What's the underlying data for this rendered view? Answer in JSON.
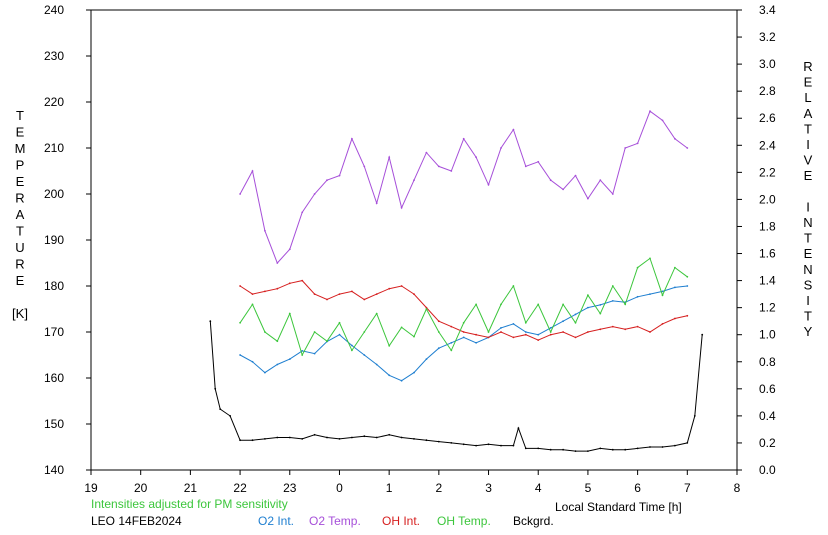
{
  "chart_data": {
    "type": "line",
    "xlabel": "Local Standard Time [h]",
    "ylabel_left": [
      "T",
      "E",
      "M",
      "P",
      "E",
      "R",
      "A",
      "T",
      "U",
      "R",
      "E",
      "",
      "[K]"
    ],
    "ylabel_right": [
      "R",
      "E",
      "L",
      "A",
      "T",
      "I",
      "V",
      "E",
      "",
      "I",
      "N",
      "T",
      "E",
      "N",
      "S",
      "I",
      "T",
      "Y"
    ],
    "note": "Intensities adjusted for PM sensitivity",
    "station": "LEO 14FEB2024",
    "x_ticks": [
      "19",
      "20",
      "21",
      "22",
      "23",
      "0",
      "1",
      "2",
      "3",
      "4",
      "5",
      "6",
      "7",
      "8"
    ],
    "x_range": [
      19,
      32
    ],
    "y_left_ticks": [
      "140",
      "150",
      "160",
      "170",
      "180",
      "190",
      "200",
      "210",
      "220",
      "230",
      "240"
    ],
    "y_left_range": [
      140,
      240
    ],
    "y_right_ticks": [
      "0.0",
      "0.2",
      "0.4",
      "0.6",
      "0.8",
      "1.0",
      "1.2",
      "1.4",
      "1.6",
      "1.8",
      "2.0",
      "2.2",
      "2.4",
      "2.6",
      "2.8",
      "3.0",
      "3.2",
      "3.4"
    ],
    "y_right_range": [
      0,
      3.4
    ],
    "legend": [
      {
        "label": "O2 Int.",
        "color": "#1f7fd0"
      },
      {
        "label": "O2 Temp.",
        "color": "#a64fd9"
      },
      {
        "label": "OH Int.",
        "color": "#d61f1f"
      },
      {
        "label": "OH Temp.",
        "color": "#3cc63c"
      },
      {
        "label": "Bckgrd.",
        "color": "#000000"
      }
    ],
    "note_color": "#3cc63c",
    "series": [
      {
        "name": "O2 Temp.",
        "axis": "left",
        "color": "#a64fd9",
        "x": [
          22.0,
          22.25,
          22.5,
          22.75,
          23.0,
          23.25,
          23.5,
          23.75,
          24.0,
          24.25,
          24.5,
          24.75,
          25.0,
          25.25,
          25.5,
          25.75,
          26.0,
          26.25,
          26.5,
          26.75,
          27.0,
          27.25,
          27.5,
          27.75,
          28.0,
          28.25,
          28.5,
          28.75,
          29.0,
          29.25,
          29.5,
          29.75,
          30.0,
          30.25,
          30.5,
          30.75,
          31.0
        ],
        "y": [
          200,
          205,
          192,
          185,
          188,
          196,
          200,
          203,
          204,
          212,
          206,
          198,
          208,
          197,
          203,
          209,
          206,
          205,
          212,
          208,
          202,
          210,
          214,
          206,
          207,
          203,
          201,
          204,
          199,
          203,
          200,
          210,
          211,
          218,
          216,
          212,
          210
        ]
      },
      {
        "name": "O2 Int.",
        "axis": "right",
        "color": "#1f7fd0",
        "x": [
          22.0,
          22.25,
          22.5,
          22.75,
          23.0,
          23.25,
          23.5,
          23.75,
          24.0,
          24.25,
          24.5,
          24.75,
          25.0,
          25.25,
          25.5,
          25.75,
          26.0,
          26.25,
          26.5,
          26.75,
          27.0,
          27.25,
          27.5,
          27.75,
          28.0,
          28.25,
          28.5,
          28.75,
          29.0,
          29.25,
          29.5,
          29.75,
          30.0,
          30.25,
          30.5,
          30.75,
          31.0
        ],
        "y": [
          0.85,
          0.8,
          0.72,
          0.78,
          0.82,
          0.88,
          0.86,
          0.95,
          1.0,
          0.92,
          0.85,
          0.78,
          0.7,
          0.66,
          0.72,
          0.82,
          0.9,
          0.94,
          0.98,
          0.94,
          0.98,
          1.05,
          1.08,
          1.02,
          1.0,
          1.05,
          1.1,
          1.15,
          1.2,
          1.22,
          1.25,
          1.24,
          1.28,
          1.3,
          1.32,
          1.35,
          1.36
        ]
      },
      {
        "name": "OH Int.",
        "axis": "right",
        "color": "#d61f1f",
        "x": [
          22.0,
          22.25,
          22.5,
          22.75,
          23.0,
          23.25,
          23.5,
          23.75,
          24.0,
          24.25,
          24.5,
          24.75,
          25.0,
          25.25,
          25.5,
          25.75,
          26.0,
          26.25,
          26.5,
          26.75,
          27.0,
          27.25,
          27.5,
          27.75,
          28.0,
          28.25,
          28.5,
          28.75,
          29.0,
          29.25,
          29.5,
          29.75,
          30.0,
          30.25,
          30.5,
          30.75,
          31.0
        ],
        "y": [
          1.36,
          1.3,
          1.32,
          1.34,
          1.38,
          1.4,
          1.3,
          1.26,
          1.3,
          1.32,
          1.26,
          1.3,
          1.34,
          1.36,
          1.3,
          1.2,
          1.1,
          1.06,
          1.02,
          1.0,
          0.98,
          1.02,
          0.98,
          1.0,
          0.96,
          1.0,
          1.02,
          0.98,
          1.02,
          1.04,
          1.06,
          1.04,
          1.06,
          1.02,
          1.08,
          1.12,
          1.14
        ]
      },
      {
        "name": "OH Temp.",
        "axis": "left",
        "color": "#3cc63c",
        "x": [
          22.0,
          22.25,
          22.5,
          22.75,
          23.0,
          23.25,
          23.5,
          23.75,
          24.0,
          24.25,
          24.5,
          24.75,
          25.0,
          25.25,
          25.5,
          25.75,
          26.0,
          26.25,
          26.5,
          26.75,
          27.0,
          27.25,
          27.5,
          27.75,
          28.0,
          28.25,
          28.5,
          28.75,
          29.0,
          29.25,
          29.5,
          29.75,
          30.0,
          30.25,
          30.5,
          30.75,
          31.0
        ],
        "y": [
          172,
          176,
          170,
          168,
          174,
          165,
          170,
          168,
          172,
          166,
          170,
          174,
          167,
          171,
          169,
          175,
          170,
          166,
          172,
          176,
          170,
          176,
          180,
          172,
          176,
          170,
          176,
          172,
          178,
          174,
          180,
          176,
          184,
          186,
          178,
          184,
          182
        ]
      },
      {
        "name": "Bckgrd.",
        "axis": "right",
        "color": "#000000",
        "x": [
          21.4,
          21.5,
          21.6,
          21.8,
          22.0,
          22.25,
          22.5,
          22.75,
          23.0,
          23.25,
          23.5,
          23.75,
          24.0,
          24.25,
          24.5,
          24.75,
          25.0,
          25.25,
          25.5,
          25.75,
          26.0,
          26.25,
          26.5,
          26.75,
          27.0,
          27.25,
          27.5,
          27.6,
          27.75,
          28.0,
          28.25,
          28.5,
          28.75,
          29.0,
          29.25,
          29.5,
          29.75,
          30.0,
          30.25,
          30.5,
          30.75,
          31.0,
          31.15,
          31.3
        ],
        "y": [
          1.1,
          0.6,
          0.45,
          0.4,
          0.22,
          0.22,
          0.23,
          0.24,
          0.24,
          0.23,
          0.26,
          0.24,
          0.23,
          0.24,
          0.25,
          0.24,
          0.26,
          0.24,
          0.23,
          0.22,
          0.21,
          0.2,
          0.19,
          0.18,
          0.19,
          0.18,
          0.18,
          0.31,
          0.16,
          0.16,
          0.15,
          0.15,
          0.14,
          0.14,
          0.16,
          0.15,
          0.15,
          0.16,
          0.17,
          0.17,
          0.18,
          0.2,
          0.4,
          1.0
        ]
      }
    ]
  }
}
